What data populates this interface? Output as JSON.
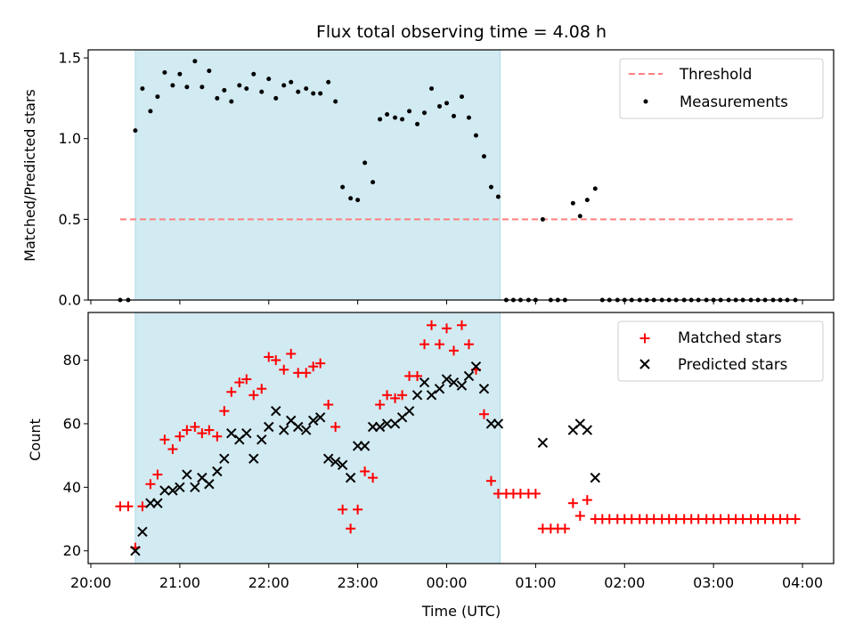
{
  "chart_data": {
    "title": "Flux total observing time = 4.08 h",
    "xlabel": "Time (UTC)",
    "x_unit": "hours since 20:00 UTC",
    "x_range": [
      -0.03,
      8.35
    ],
    "x_ticks": [
      {
        "value": 0,
        "label": "20:00"
      },
      {
        "value": 1,
        "label": "21:00"
      },
      {
        "value": 2,
        "label": "22:00"
      },
      {
        "value": 3,
        "label": "23:00"
      },
      {
        "value": 4,
        "label": "00:00"
      },
      {
        "value": 5,
        "label": "01:00"
      },
      {
        "value": 6,
        "label": "02:00"
      },
      {
        "value": 7,
        "label": "03:00"
      },
      {
        "value": 8,
        "label": "04:00"
      }
    ],
    "observing_window": {
      "start": 0.5,
      "end": 4.6,
      "color": "#add8e6"
    },
    "top": {
      "type": "scatter",
      "ylabel": "Matched/Predicted stars",
      "ylim": [
        0.0,
        1.55
      ],
      "yticks": [
        {
          "value": 0.0,
          "label": "0.0"
        },
        {
          "value": 0.5,
          "label": "0.5"
        },
        {
          "value": 1.0,
          "label": "1.0"
        },
        {
          "value": 1.5,
          "label": "1.5"
        }
      ],
      "threshold": {
        "name": "Threshold",
        "value": 0.5,
        "x_start": 0.33,
        "x_end": 7.91,
        "color": "#ff7f7f"
      },
      "measurements": {
        "name": "Measurements",
        "color": "#000000",
        "points": [
          [
            0.33,
            0.0
          ],
          [
            0.42,
            0.0
          ],
          [
            0.5,
            1.05
          ],
          [
            0.58,
            1.31
          ],
          [
            0.67,
            1.17
          ],
          [
            0.75,
            1.26
          ],
          [
            0.83,
            1.41
          ],
          [
            0.92,
            1.33
          ],
          [
            1.0,
            1.4
          ],
          [
            1.08,
            1.32
          ],
          [
            1.17,
            1.48
          ],
          [
            1.25,
            1.32
          ],
          [
            1.33,
            1.42
          ],
          [
            1.42,
            1.25
          ],
          [
            1.5,
            1.3
          ],
          [
            1.58,
            1.23
          ],
          [
            1.67,
            1.33
          ],
          [
            1.75,
            1.31
          ],
          [
            1.83,
            1.4
          ],
          [
            1.92,
            1.29
          ],
          [
            2.0,
            1.37
          ],
          [
            2.08,
            1.25
          ],
          [
            2.17,
            1.33
          ],
          [
            2.25,
            1.35
          ],
          [
            2.33,
            1.29
          ],
          [
            2.42,
            1.31
          ],
          [
            2.5,
            1.28
          ],
          [
            2.58,
            1.28
          ],
          [
            2.67,
            1.35
          ],
          [
            2.75,
            1.23
          ],
          [
            2.83,
            0.7
          ],
          [
            2.92,
            0.63
          ],
          [
            3.0,
            0.62
          ],
          [
            3.08,
            0.85
          ],
          [
            3.17,
            0.73
          ],
          [
            3.25,
            1.12
          ],
          [
            3.33,
            1.15
          ],
          [
            3.42,
            1.13
          ],
          [
            3.5,
            1.12
          ],
          [
            3.58,
            1.17
          ],
          [
            3.67,
            1.09
          ],
          [
            3.75,
            1.16
          ],
          [
            3.83,
            1.31
          ],
          [
            3.92,
            1.2
          ],
          [
            4.0,
            1.22
          ],
          [
            4.08,
            1.14
          ],
          [
            4.17,
            1.26
          ],
          [
            4.25,
            1.13
          ],
          [
            4.33,
            1.02
          ],
          [
            4.42,
            0.89
          ],
          [
            4.5,
            0.7
          ],
          [
            4.58,
            0.64
          ],
          [
            4.67,
            0.0
          ],
          [
            4.75,
            0.0
          ],
          [
            4.83,
            0.0
          ],
          [
            4.92,
            0.0
          ],
          [
            5.0,
            0.0
          ],
          [
            5.08,
            0.5
          ],
          [
            5.17,
            0.0
          ],
          [
            5.25,
            0.0
          ],
          [
            5.33,
            0.0
          ],
          [
            5.42,
            0.6
          ],
          [
            5.5,
            0.52
          ],
          [
            5.58,
            0.62
          ],
          [
            5.67,
            0.69
          ],
          [
            5.75,
            0.0
          ],
          [
            5.83,
            0.0
          ],
          [
            5.92,
            0.0
          ],
          [
            6.0,
            0.0
          ],
          [
            6.08,
            0.0
          ],
          [
            6.17,
            0.0
          ],
          [
            6.25,
            0.0
          ],
          [
            6.33,
            0.0
          ],
          [
            6.42,
            0.0
          ],
          [
            6.5,
            0.0
          ],
          [
            6.58,
            0.0
          ],
          [
            6.67,
            0.0
          ],
          [
            6.75,
            0.0
          ],
          [
            6.83,
            0.0
          ],
          [
            6.92,
            0.0
          ],
          [
            7.0,
            0.0
          ],
          [
            7.08,
            0.0
          ],
          [
            7.17,
            0.0
          ],
          [
            7.25,
            0.0
          ],
          [
            7.33,
            0.0
          ],
          [
            7.42,
            0.0
          ],
          [
            7.5,
            0.0
          ],
          [
            7.58,
            0.0
          ],
          [
            7.67,
            0.0
          ],
          [
            7.75,
            0.0
          ],
          [
            7.83,
            0.0
          ],
          [
            7.92,
            0.0
          ]
        ]
      },
      "legend": {
        "position": "upper right",
        "entries": [
          "Threshold",
          "Measurements"
        ]
      }
    },
    "bottom": {
      "type": "scatter",
      "ylabel": "Count",
      "ylim": [
        16,
        95
      ],
      "yticks": [
        {
          "value": 20,
          "label": "20"
        },
        {
          "value": 40,
          "label": "40"
        },
        {
          "value": 60,
          "label": "60"
        },
        {
          "value": 80,
          "label": "80"
        }
      ],
      "matched": {
        "name": "Matched stars",
        "marker": "+",
        "color": "#ff0000",
        "points": [
          [
            0.33,
            34
          ],
          [
            0.42,
            34
          ],
          [
            0.5,
            21
          ],
          [
            0.58,
            34
          ],
          [
            0.67,
            41
          ],
          [
            0.75,
            44
          ],
          [
            0.83,
            55
          ],
          [
            0.92,
            52
          ],
          [
            1.0,
            56
          ],
          [
            1.08,
            58
          ],
          [
            1.17,
            59
          ],
          [
            1.25,
            57
          ],
          [
            1.33,
            58
          ],
          [
            1.42,
            56
          ],
          [
            1.5,
            64
          ],
          [
            1.58,
            70
          ],
          [
            1.67,
            73
          ],
          [
            1.75,
            74
          ],
          [
            1.83,
            69
          ],
          [
            1.92,
            71
          ],
          [
            2.0,
            81
          ],
          [
            2.08,
            80
          ],
          [
            2.17,
            77
          ],
          [
            2.25,
            82
          ],
          [
            2.33,
            76
          ],
          [
            2.42,
            76
          ],
          [
            2.5,
            78
          ],
          [
            2.58,
            79
          ],
          [
            2.67,
            66
          ],
          [
            2.75,
            59
          ],
          [
            2.83,
            33
          ],
          [
            2.92,
            27
          ],
          [
            3.0,
            33
          ],
          [
            3.08,
            45
          ],
          [
            3.17,
            43
          ],
          [
            3.25,
            66
          ],
          [
            3.33,
            69
          ],
          [
            3.42,
            68
          ],
          [
            3.5,
            69
          ],
          [
            3.58,
            75
          ],
          [
            3.67,
            75
          ],
          [
            3.75,
            85
          ],
          [
            3.83,
            91
          ],
          [
            3.92,
            85
          ],
          [
            4.0,
            90
          ],
          [
            4.08,
            83
          ],
          [
            4.17,
            91
          ],
          [
            4.25,
            85
          ],
          [
            4.33,
            77
          ],
          [
            4.42,
            63
          ],
          [
            4.5,
            42
          ],
          [
            4.58,
            38
          ],
          [
            4.67,
            38
          ],
          [
            4.75,
            38
          ],
          [
            4.83,
            38
          ],
          [
            4.92,
            38
          ],
          [
            5.0,
            38
          ],
          [
            5.08,
            27
          ],
          [
            5.17,
            27
          ],
          [
            5.25,
            27
          ],
          [
            5.33,
            27
          ],
          [
            5.42,
            35
          ],
          [
            5.5,
            31
          ],
          [
            5.58,
            36
          ],
          [
            5.67,
            30
          ],
          [
            5.75,
            30
          ],
          [
            5.83,
            30
          ],
          [
            5.92,
            30
          ],
          [
            6.0,
            30
          ],
          [
            6.08,
            30
          ],
          [
            6.17,
            30
          ],
          [
            6.25,
            30
          ],
          [
            6.33,
            30
          ],
          [
            6.42,
            30
          ],
          [
            6.5,
            30
          ],
          [
            6.58,
            30
          ],
          [
            6.67,
            30
          ],
          [
            6.75,
            30
          ],
          [
            6.83,
            30
          ],
          [
            6.92,
            30
          ],
          [
            7.0,
            30
          ],
          [
            7.08,
            30
          ],
          [
            7.17,
            30
          ],
          [
            7.25,
            30
          ],
          [
            7.33,
            30
          ],
          [
            7.42,
            30
          ],
          [
            7.5,
            30
          ],
          [
            7.58,
            30
          ],
          [
            7.67,
            30
          ],
          [
            7.75,
            30
          ],
          [
            7.83,
            30
          ],
          [
            7.92,
            30
          ]
        ]
      },
      "predicted": {
        "name": "Predicted stars",
        "marker": "x",
        "color": "#000000",
        "points": [
          [
            0.5,
            20
          ],
          [
            0.58,
            26
          ],
          [
            0.67,
            35
          ],
          [
            0.75,
            35
          ],
          [
            0.83,
            39
          ],
          [
            0.92,
            39
          ],
          [
            1.0,
            40
          ],
          [
            1.08,
            44
          ],
          [
            1.17,
            40
          ],
          [
            1.25,
            43
          ],
          [
            1.33,
            41
          ],
          [
            1.42,
            45
          ],
          [
            1.5,
            49
          ],
          [
            1.58,
            57
          ],
          [
            1.67,
            55
          ],
          [
            1.75,
            57
          ],
          [
            1.83,
            49
          ],
          [
            1.92,
            55
          ],
          [
            2.0,
            59
          ],
          [
            2.08,
            64
          ],
          [
            2.17,
            58
          ],
          [
            2.25,
            61
          ],
          [
            2.33,
            59
          ],
          [
            2.42,
            58
          ],
          [
            2.5,
            61
          ],
          [
            2.58,
            62
          ],
          [
            2.67,
            49
          ],
          [
            2.75,
            48
          ],
          [
            2.83,
            47
          ],
          [
            2.92,
            43
          ],
          [
            3.0,
            53
          ],
          [
            3.08,
            53
          ],
          [
            3.17,
            59
          ],
          [
            3.25,
            59
          ],
          [
            3.33,
            60
          ],
          [
            3.42,
            60
          ],
          [
            3.5,
            62
          ],
          [
            3.58,
            64
          ],
          [
            3.67,
            69
          ],
          [
            3.75,
            73
          ],
          [
            3.83,
            69
          ],
          [
            3.92,
            71
          ],
          [
            4.0,
            74
          ],
          [
            4.08,
            73
          ],
          [
            4.17,
            72
          ],
          [
            4.25,
            75
          ],
          [
            4.33,
            78
          ],
          [
            4.42,
            71
          ],
          [
            4.5,
            60
          ],
          [
            4.58,
            60
          ],
          [
            5.08,
            54
          ],
          [
            5.42,
            58
          ],
          [
            5.5,
            60
          ],
          [
            5.58,
            58
          ],
          [
            5.67,
            43
          ]
        ]
      },
      "legend": {
        "position": "upper right",
        "entries": [
          "Matched stars",
          "Predicted stars"
        ]
      }
    }
  }
}
